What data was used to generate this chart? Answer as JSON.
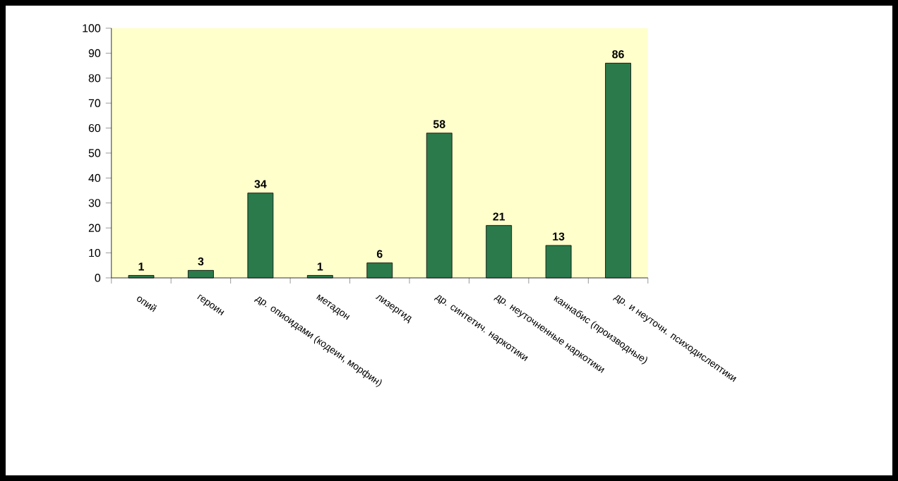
{
  "chart_data": {
    "type": "bar",
    "categories": [
      "опий",
      "героин",
      "др. опиоидами (кодеин, морфин)",
      "метадон",
      "лизергид",
      "др. синтетич. наркотики",
      "др. неуточненные наркотики",
      "каннабис (производные)",
      "др. и неуточн. психодислептики"
    ],
    "values": [
      1,
      3,
      34,
      1,
      6,
      58,
      21,
      13,
      86
    ],
    "color": "#2b7a4b",
    "ylim": [
      0,
      100
    ],
    "yticks": [
      0,
      10,
      20,
      30,
      40,
      50,
      60,
      70,
      80,
      90,
      100
    ],
    "data_labels": true
  }
}
